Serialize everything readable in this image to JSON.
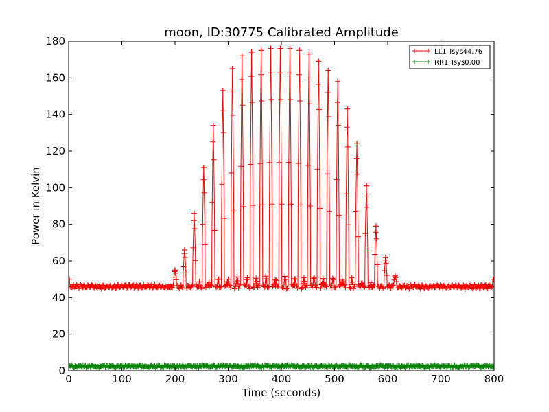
{
  "chart_data": {
    "type": "line",
    "title": "moon, ID:30775 Calibrated Amplitude",
    "xlabel": "Time (seconds)",
    "ylabel": "Power in Kelvin",
    "xlim": [
      0,
      800
    ],
    "ylim": [
      0,
      180
    ],
    "xticks": [
      "0",
      "100",
      "200",
      "300",
      "400",
      "500",
      "600",
      "700",
      "800"
    ],
    "yticks": [
      "0",
      "20",
      "40",
      "60",
      "80",
      "100",
      "120",
      "140",
      "160",
      "180"
    ],
    "grid": false,
    "legend_position": "top-right",
    "baseline": 47,
    "scan_period_s": 18,
    "scan_peaks": [
      {
        "t": 200,
        "peak": 55
      },
      {
        "t": 218,
        "peak": 66
      },
      {
        "t": 236,
        "peak": 86
      },
      {
        "t": 254,
        "peak": 111
      },
      {
        "t": 272,
        "peak": 134
      },
      {
        "t": 290,
        "peak": 153
      },
      {
        "t": 308,
        "peak": 165
      },
      {
        "t": 326,
        "peak": 172
      },
      {
        "t": 344,
        "peak": 174
      },
      {
        "t": 362,
        "peak": 175
      },
      {
        "t": 380,
        "peak": 176
      },
      {
        "t": 398,
        "peak": 176
      },
      {
        "t": 416,
        "peak": 176
      },
      {
        "t": 434,
        "peak": 175
      },
      {
        "t": 452,
        "peak": 173
      },
      {
        "t": 470,
        "peak": 169
      },
      {
        "t": 488,
        "peak": 164
      },
      {
        "t": 506,
        "peak": 158
      },
      {
        "t": 524,
        "peak": 143
      },
      {
        "t": 542,
        "peak": 124
      },
      {
        "t": 560,
        "peak": 101
      },
      {
        "t": 578,
        "peak": 79
      },
      {
        "t": 596,
        "peak": 62
      },
      {
        "t": 614,
        "peak": 52
      }
    ],
    "series": [
      {
        "name": "LL1 Tsys44.76",
        "color": "#ff0000",
        "marker": "plus",
        "level": 47
      },
      {
        "name": "RR1 Tsys0.00",
        "color": "#008000",
        "marker": "plus",
        "level": 2.5
      }
    ]
  }
}
